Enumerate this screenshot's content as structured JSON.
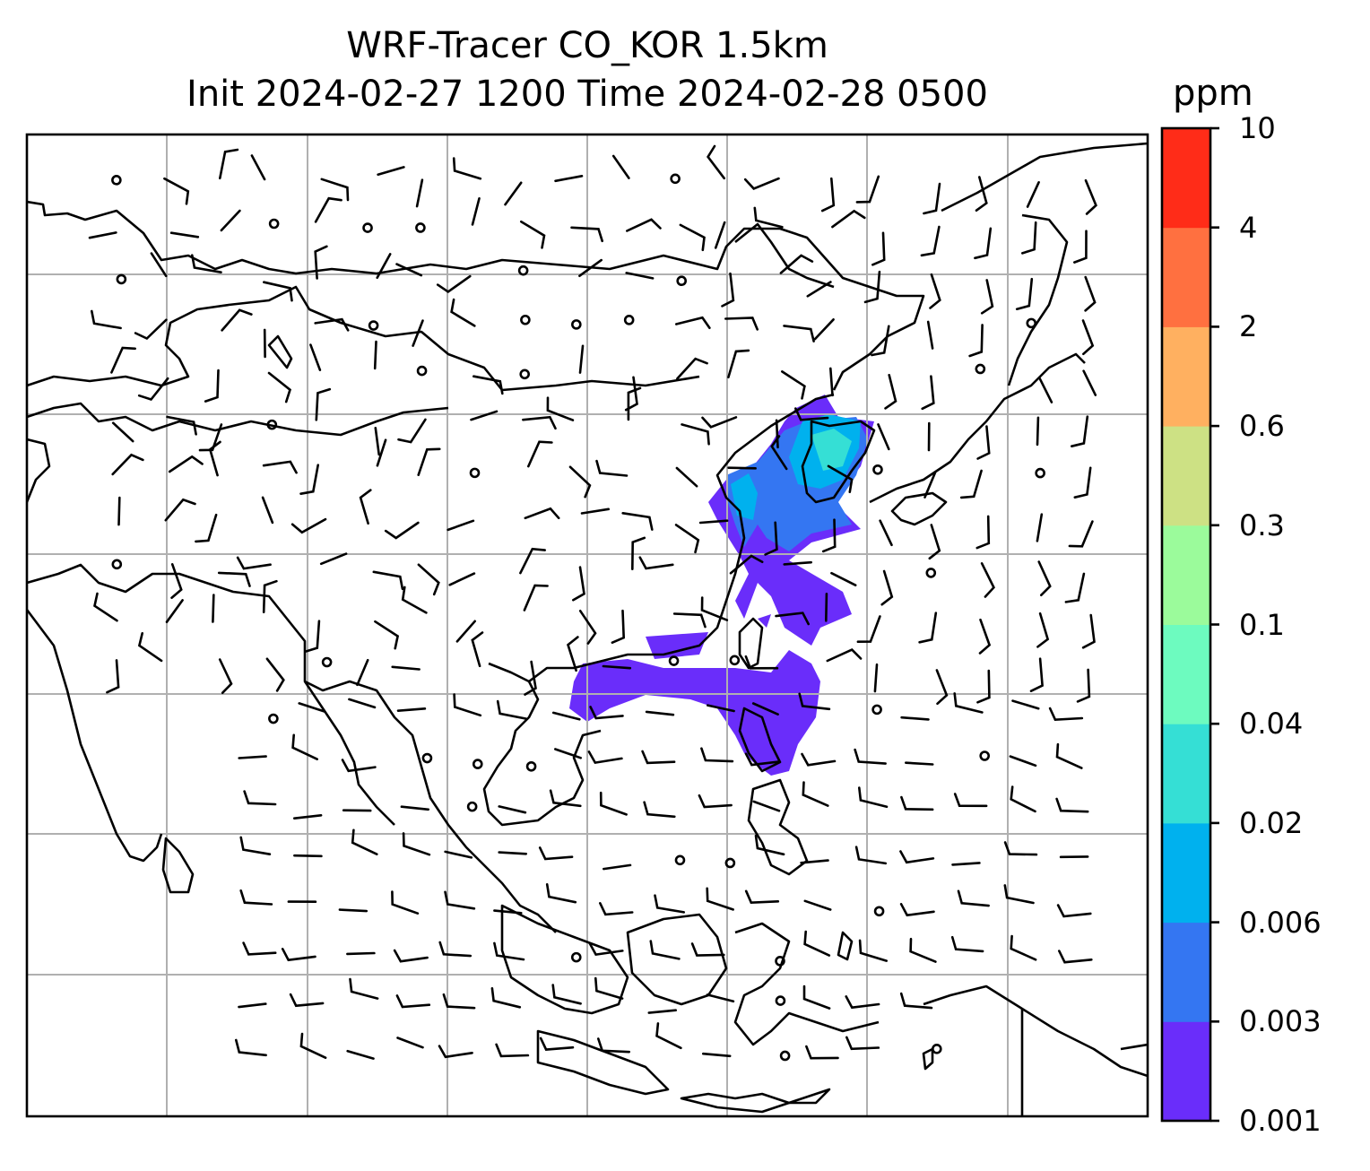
{
  "title": {
    "line1": "WRF-Tracer CO_KOR 1.5km",
    "line2": "Init 2024-02-27 1200 Time 2024-02-28 0500"
  },
  "colorbar": {
    "unit": "ppm",
    "levels": [
      "0.001",
      "0.003",
      "0.006",
      "0.02",
      "0.04",
      "0.1",
      "0.3",
      "0.6",
      "2",
      "4",
      "10"
    ],
    "colors": [
      "#6a2dfa",
      "#3476f2",
      "#00b1ee",
      "#35dfd5",
      "#6dfbbf",
      "#9bfb9b",
      "#cde184",
      "#ffb060",
      "#ff7040",
      "#ff2c18"
    ]
  },
  "map": {
    "gridlines": true,
    "features": [
      "coastlines",
      "country-borders",
      "wind-barbs",
      "tracer-plume"
    ]
  }
}
